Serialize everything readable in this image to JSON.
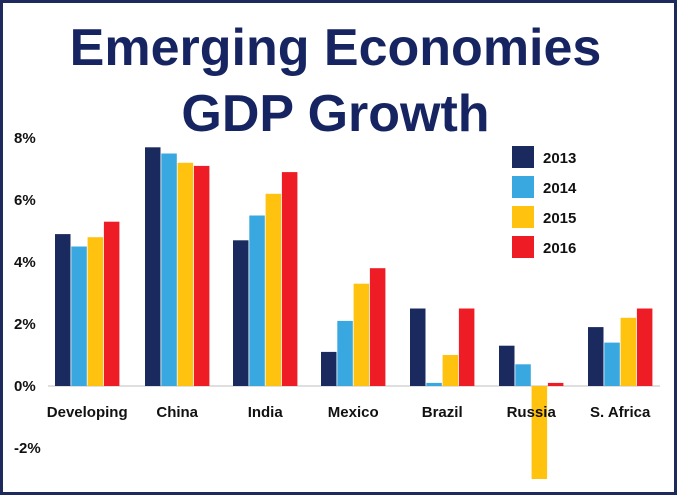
{
  "chart_data": {
    "type": "bar",
    "title_line1": "Emerging Economies",
    "title_line2": "GDP Growth",
    "xlabel": "",
    "ylabel": "",
    "ylim": [
      -3,
      8
    ],
    "yticks": [
      8,
      6,
      4,
      2,
      0,
      -2
    ],
    "ytick_labels": [
      "8%",
      "6%",
      "4%",
      "2%",
      "0%",
      "-2%"
    ],
    "categories": [
      "Developing",
      "China",
      "India",
      "Mexico",
      "Brazil",
      "Russia",
      "S. Africa"
    ],
    "series": [
      {
        "name": "2013",
        "color": "#1b2a5e",
        "values": [
          4.9,
          7.7,
          4.7,
          1.1,
          2.5,
          1.3,
          1.9
        ]
      },
      {
        "name": "2014",
        "color": "#3aa8e0",
        "values": [
          4.5,
          7.5,
          5.5,
          2.1,
          0.1,
          0.7,
          1.4
        ]
      },
      {
        "name": "2015",
        "color": "#ffc20e",
        "values": [
          4.8,
          7.2,
          6.2,
          3.3,
          1.0,
          -3.0,
          2.2
        ]
      },
      {
        "name": "2016",
        "color": "#ee1c24",
        "values": [
          5.3,
          7.1,
          6.9,
          3.8,
          2.5,
          0.1,
          2.5
        ]
      }
    ],
    "legend_position": "top-right",
    "grid": false
  }
}
